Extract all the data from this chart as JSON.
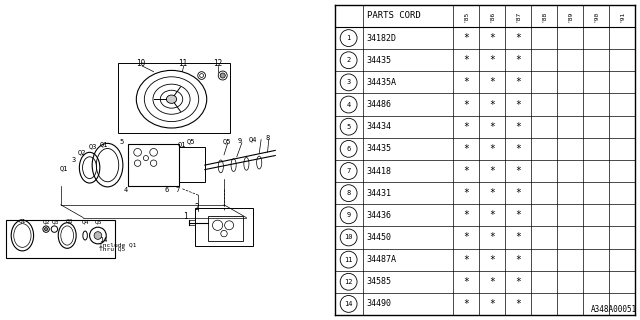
{
  "diagram_label": "A348A00051",
  "table_header": "PARTS CORD",
  "col_headers": [
    "85",
    "86",
    "87",
    "88",
    "89",
    "90",
    "91"
  ],
  "parts": [
    {
      "num": "1",
      "code": "34182D",
      "marks": [
        1,
        1,
        1,
        0,
        0,
        0,
        0
      ]
    },
    {
      "num": "2",
      "code": "34435",
      "marks": [
        1,
        1,
        1,
        0,
        0,
        0,
        0
      ]
    },
    {
      "num": "3",
      "code": "34435A",
      "marks": [
        1,
        1,
        1,
        0,
        0,
        0,
        0
      ]
    },
    {
      "num": "4",
      "code": "34486",
      "marks": [
        1,
        1,
        1,
        0,
        0,
        0,
        0
      ]
    },
    {
      "num": "5",
      "code": "34434",
      "marks": [
        1,
        1,
        1,
        0,
        0,
        0,
        0
      ]
    },
    {
      "num": "6",
      "code": "34435",
      "marks": [
        1,
        1,
        1,
        0,
        0,
        0,
        0
      ]
    },
    {
      "num": "7",
      "code": "34418",
      "marks": [
        1,
        1,
        1,
        0,
        0,
        0,
        0
      ]
    },
    {
      "num": "8",
      "code": "34431",
      "marks": [
        1,
        1,
        1,
        0,
        0,
        0,
        0
      ]
    },
    {
      "num": "9",
      "code": "34436",
      "marks": [
        1,
        1,
        1,
        0,
        0,
        0,
        0
      ]
    },
    {
      "num": "10",
      "code": "34450",
      "marks": [
        1,
        1,
        1,
        0,
        0,
        0,
        0
      ]
    },
    {
      "num": "11",
      "code": "34487A",
      "marks": [
        1,
        1,
        1,
        0,
        0,
        0,
        0
      ]
    },
    {
      "num": "12",
      "code": "34585",
      "marks": [
        1,
        1,
        1,
        0,
        0,
        0,
        0
      ]
    },
    {
      "num": "14",
      "code": "34490",
      "marks": [
        1,
        1,
        1,
        0,
        0,
        0,
        0
      ]
    }
  ],
  "bg_color": "#ffffff"
}
